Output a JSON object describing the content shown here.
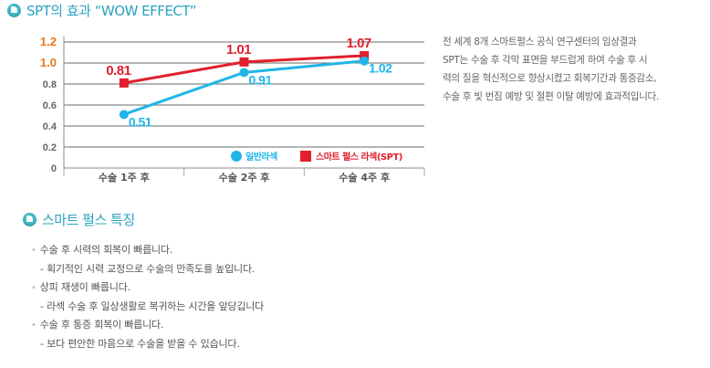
{
  "sections": {
    "effect_title": "SPT의 효과 “WOW EFFECT”",
    "features_title": "스마트 펄스 특징"
  },
  "description": [
    "전 세계 8개 스마트펄스 공식 연구센터의 임상결과",
    "SPT는 수술 후 각막 표면을 부드럽게 하여 수술 후 시",
    "력의 질을 혁신적으로 향상시켰고 회복기간과 통증감소,",
    "수술 후 빛 번짐 예방 및 절편 이탈 예방에 효과적입니다."
  ],
  "features": [
    {
      "main": "수술 후 시력의 회복이 빠릅니다.",
      "sub": "- 획기적인 시력 교정으로 수술의 만족도를 높입니다."
    },
    {
      "main": "상피 재생이 빠릅니다.",
      "sub": "- 라섹 수술 후 일상생활로 복귀하는 시간을 앞당깁니다"
    },
    {
      "main": "수술 후 통증 회복이 빠릅니다.",
      "sub": "- 보다 편안한 마음으로 수술을 받을 수 있습니다."
    }
  ],
  "chart_data": {
    "type": "line",
    "categories": [
      "수술 1주 후",
      "수술 2주 후",
      "수술 4주 후"
    ],
    "yticks": [
      "1.2",
      "1.0",
      "0.8",
      "0.6",
      "0.4",
      "0.2",
      "0"
    ],
    "ylim": [
      0,
      1.2
    ],
    "grid": true,
    "legend_position": "bottom-right",
    "series": [
      {
        "name": "스마트 펄스 라섹(SPT)",
        "values": [
          0.81,
          1.01,
          1.07
        ],
        "labels": [
          "0.81",
          "1.01",
          "1.07"
        ],
        "color": "#e0202c"
      },
      {
        "name": "일반라섹",
        "values": [
          0.51,
          0.91,
          1.02
        ],
        "labels": [
          "0.51",
          "0.91",
          "1.02"
        ],
        "color": "#1fb6e8"
      }
    ],
    "ytick_colors": {
      "highlight": "#e6781e",
      "normal": "#666666"
    }
  }
}
